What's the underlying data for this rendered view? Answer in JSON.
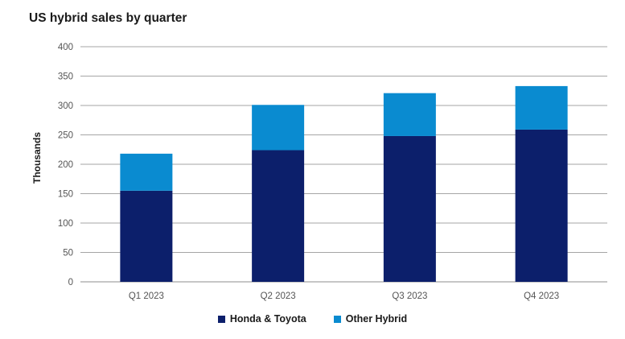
{
  "chart_data": {
    "type": "bar",
    "stacked": true,
    "title": "US hybrid sales by quarter",
    "ylabel": "Thousands",
    "xlabel": "",
    "categories": [
      "Q1 2023",
      "Q2 2023",
      "Q3 2023",
      "Q4 2023"
    ],
    "series": [
      {
        "name": "Honda & Toyota",
        "values": [
          155,
          224,
          248,
          259
        ],
        "color": "#0c1f6b"
      },
      {
        "name": "Other Hybrid",
        "values": [
          63,
          77,
          73,
          74
        ],
        "color": "#0a8bd0"
      }
    ],
    "ylim": [
      0,
      400
    ],
    "yticks": [
      0,
      50,
      100,
      150,
      200,
      250,
      300,
      350,
      400
    ],
    "grid": true,
    "legend_position": "bottom"
  }
}
